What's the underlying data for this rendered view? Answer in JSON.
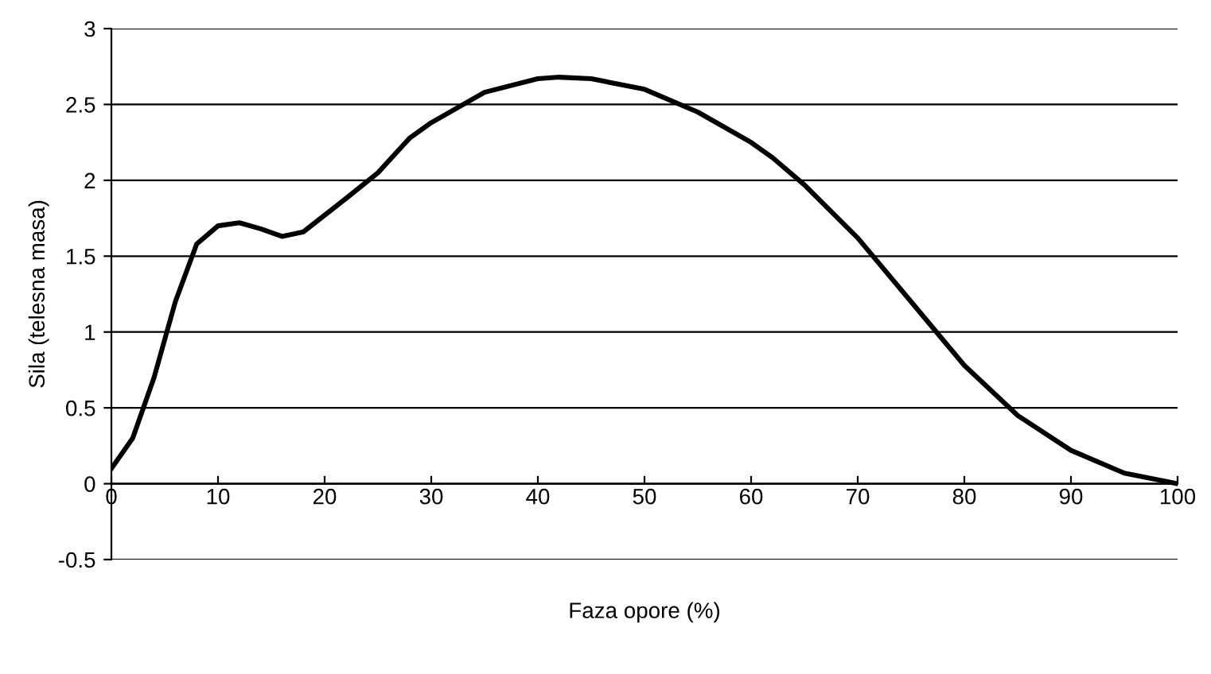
{
  "chart_data": {
    "type": "line",
    "xlabel": "Faza opore (%)",
    "ylabel": "Sila (telesna masa)",
    "x": [
      0,
      2,
      4,
      6,
      8,
      10,
      12,
      14,
      16,
      18,
      20,
      22,
      25,
      28,
      30,
      35,
      40,
      42,
      45,
      50,
      55,
      60,
      62,
      65,
      70,
      75,
      80,
      85,
      90,
      95,
      100
    ],
    "series": [
      {
        "color": "#000000",
        "values": [
          0.1,
          0.3,
          0.7,
          1.2,
          1.58,
          1.7,
          1.72,
          1.68,
          1.63,
          1.66,
          1.77,
          1.88,
          2.05,
          2.28,
          2.38,
          2.58,
          2.67,
          2.68,
          2.67,
          2.6,
          2.45,
          2.25,
          2.15,
          1.97,
          1.62,
          1.2,
          0.78,
          0.45,
          0.22,
          0.07,
          0.0
        ]
      }
    ],
    "xlim": [
      0,
      100
    ],
    "xticks": [
      0,
      10,
      20,
      30,
      40,
      50,
      60,
      70,
      80,
      90,
      100
    ],
    "ylim": [
      -0.5,
      3
    ],
    "yticks": [
      -0.5,
      0,
      0.5,
      1,
      1.5,
      2,
      2.5,
      3
    ],
    "grid": "y",
    "legend": false,
    "marker": "none",
    "line_style": "solid"
  }
}
